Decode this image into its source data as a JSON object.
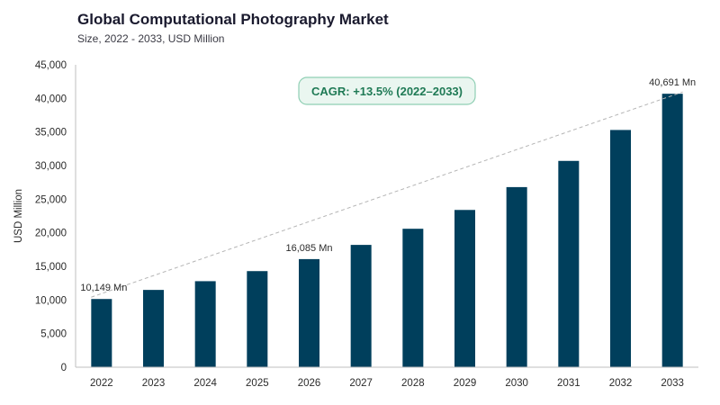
{
  "header": {
    "title": "Global Computational Photography Market",
    "subtitle": "Size, 2022 - 2033, USD Million"
  },
  "colors": {
    "bar": "#003f5c",
    "axis": "#bfbfbf",
    "trend": "#b5b5b5",
    "cagr_border": "#8fcfb3",
    "cagr_fill": "#eaf6f0"
  },
  "chart_data": {
    "type": "bar",
    "categories": [
      "2022",
      "2023",
      "2024",
      "2025",
      "2026",
      "2027",
      "2028",
      "2029",
      "2030",
      "2031",
      "2032",
      "2033"
    ],
    "values": [
      10149,
      11500,
      12800,
      14300,
      16085,
      18200,
      20600,
      23400,
      26800,
      30700,
      35300,
      40691
    ],
    "ylabel": "USD Million",
    "ylim": [
      0,
      45000
    ],
    "yticks": [
      0,
      5000,
      10000,
      15000,
      20000,
      25000,
      30000,
      35000,
      40000,
      45000
    ],
    "ytick_labels": [
      "0",
      "5,000",
      "10,000",
      "15,000",
      "20,000",
      "25,000",
      "30,000",
      "35,000",
      "40,000",
      "45,000"
    ],
    "grid": false,
    "data_labels": [
      {
        "index": 0,
        "text": "10,149 Mn"
      },
      {
        "index": 4,
        "text": "16,085 Mn"
      },
      {
        "index": 11,
        "text": "40,691 Mn"
      }
    ],
    "annotation": "CAGR: +13.5% (2022–2033)",
    "trend_line": {
      "from_index": 0,
      "to_index": 11
    }
  }
}
